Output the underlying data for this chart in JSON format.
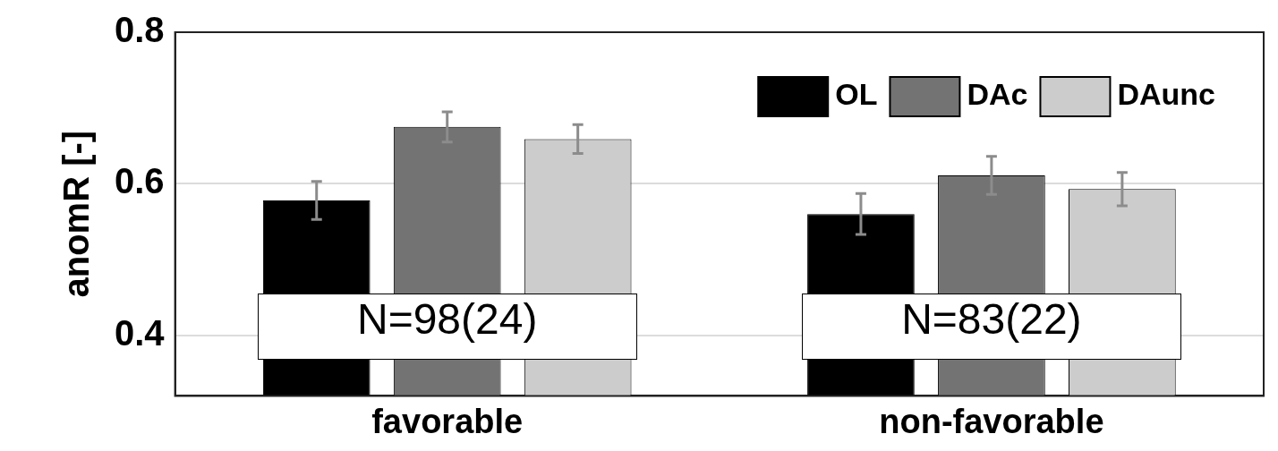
{
  "chart_data": {
    "type": "bar",
    "ylabel": "anomR [-]",
    "categories": [
      "favorable",
      "non-favorable"
    ],
    "series": [
      {
        "name": "OL",
        "color": "#000000",
        "values": [
          0.578,
          0.56
        ],
        "errors": [
          0.025,
          0.027
        ]
      },
      {
        "name": "DAc",
        "color": "#737373",
        "values": [
          0.675,
          0.611
        ],
        "errors": [
          0.02,
          0.025
        ]
      },
      {
        "name": "DAunc",
        "color": "#cccccc",
        "values": [
          0.659,
          0.593
        ],
        "errors": [
          0.019,
          0.022
        ]
      }
    ],
    "ylim": [
      0.32,
      0.8
    ],
    "yticks": [
      0.4,
      0.6,
      0.8
    ],
    "grid": "y",
    "legend": "top right",
    "annotations": [
      "N=98(24)",
      "N=83(22)"
    ]
  }
}
